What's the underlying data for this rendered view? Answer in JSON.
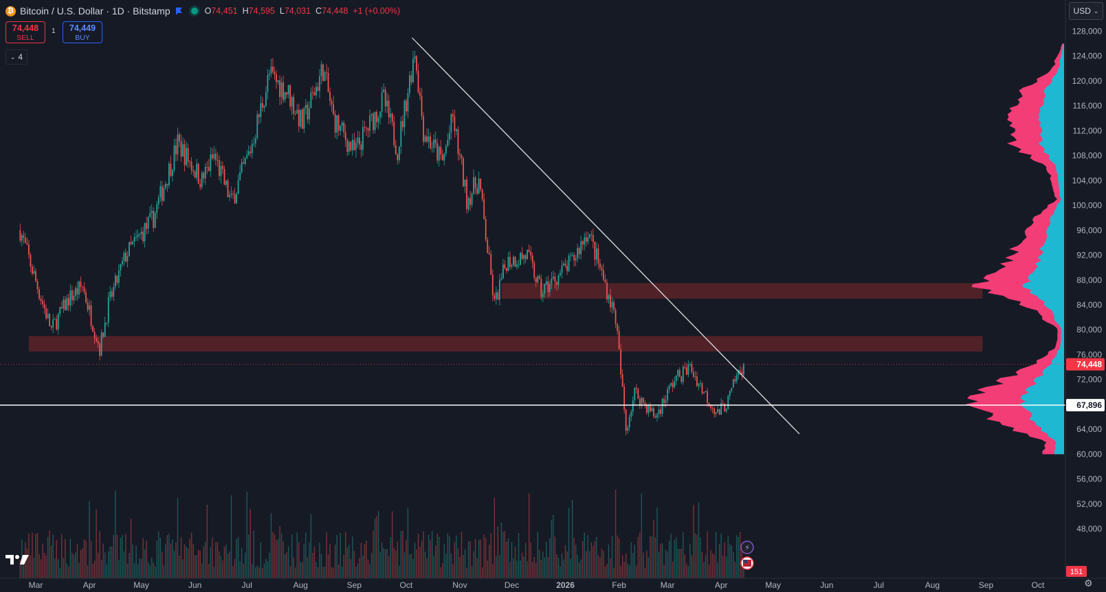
{
  "header": {
    "symbol_icon": "bitcoin-icon",
    "title": "Bitcoin / U.S. Dollar · 1D · Bitstamp",
    "ohlc": {
      "o_label": "O",
      "o": "74,451",
      "h_label": "H",
      "h": "74,595",
      "l_label": "L",
      "l": "74,031",
      "c_label": "C",
      "c": "74,448",
      "change": "+1 (+0.00%)"
    }
  },
  "trade": {
    "sell_price": "74,448",
    "sell_label": "SELL",
    "qty": "1",
    "buy_price": "74,449",
    "buy_label": "BUY"
  },
  "indicators_toggle": "4",
  "currency": "USD",
  "colors": {
    "up": "#26a69a",
    "down": "#ef5350",
    "profile_up": "#1fb8d3",
    "profile_down": "#f23d77",
    "zone": "#5c2329",
    "background": "#161a25"
  },
  "chart_data": {
    "type": "candlestick",
    "symbol": "Bitcoin / U.S. Dollar",
    "interval": "1D",
    "exchange": "Bitstamp",
    "x_ticks": [
      "Mar",
      "Apr",
      "May",
      "Jun",
      "Jul",
      "Aug",
      "Sep",
      "Oct",
      "Nov",
      "Dec",
      "2026",
      "Feb",
      "Mar",
      "Apr",
      "May",
      "Jun",
      "Jul",
      "Aug",
      "Sep",
      "Oct"
    ],
    "x_tick_dates": [
      "2025-03-01",
      "2025-04-01",
      "2025-05-01",
      "2025-06-01",
      "2025-07-01",
      "2025-08-01",
      "2025-09-01",
      "2025-10-01",
      "2025-11-01",
      "2025-12-01",
      "2026-01-01",
      "2026-02-01",
      "2026-03-01",
      "2026-04-01",
      "2026-05-01",
      "2026-06-01",
      "2026-07-01",
      "2026-08-01",
      "2026-09-01",
      "2026-10-01"
    ],
    "y_ticks": [
      48000,
      52000,
      56000,
      60000,
      64000,
      68000,
      72000,
      76000,
      80000,
      84000,
      88000,
      92000,
      96000,
      100000,
      104000,
      108000,
      112000,
      116000,
      120000,
      124000,
      128000
    ],
    "y_tick_labels": [
      "48,000",
      "52,000",
      "56,000",
      "60,000",
      "64,000",
      "68,000",
      "72,000",
      "76,000",
      "80,000",
      "84,000",
      "88,000",
      "92,000",
      "96,000",
      "100,000",
      "104,000",
      "108,000",
      "112,000",
      "116,000",
      "120,000",
      "124,000",
      "128,000"
    ],
    "ylim": [
      45000,
      132000
    ],
    "price_path": [
      [
        "2025-02-20",
        96000
      ],
      [
        "2025-03-03",
        86000
      ],
      [
        "2025-03-10",
        80000
      ],
      [
        "2025-03-20",
        85000
      ],
      [
        "2025-03-28",
        87000
      ],
      [
        "2025-04-07",
        77000
      ],
      [
        "2025-04-12",
        84000
      ],
      [
        "2025-04-22",
        92000
      ],
      [
        "2025-05-08",
        98000
      ],
      [
        "2025-05-22",
        110000
      ],
      [
        "2025-06-05",
        104000
      ],
      [
        "2025-06-12",
        108000
      ],
      [
        "2025-06-22",
        100500
      ],
      [
        "2025-07-03",
        109000
      ],
      [
        "2025-07-14",
        121000
      ],
      [
        "2025-07-25",
        118000
      ],
      [
        "2025-08-02",
        113000
      ],
      [
        "2025-08-14",
        122000
      ],
      [
        "2025-08-20",
        114000
      ],
      [
        "2025-09-01",
        108500
      ],
      [
        "2025-09-18",
        117000
      ],
      [
        "2025-09-26",
        109000
      ],
      [
        "2025-10-06",
        125000
      ],
      [
        "2025-10-11",
        112000
      ],
      [
        "2025-10-22",
        107000
      ],
      [
        "2025-10-28",
        114000
      ],
      [
        "2025-11-05",
        101000
      ],
      [
        "2025-11-12",
        104000
      ],
      [
        "2025-11-21",
        84000
      ],
      [
        "2025-11-28",
        91000
      ],
      [
        "2025-12-10",
        92000
      ],
      [
        "2025-12-18",
        86000
      ],
      [
        "2026-01-05",
        91000
      ],
      [
        "2026-01-14",
        96000
      ],
      [
        "2026-01-22",
        89000
      ],
      [
        "2026-01-30",
        82000
      ],
      [
        "2026-02-05",
        64000
      ],
      [
        "2026-02-10",
        70000
      ],
      [
        "2026-02-22",
        66000
      ],
      [
        "2026-03-05",
        72000
      ],
      [
        "2026-03-14",
        74000
      ],
      [
        "2026-03-22",
        70000
      ],
      [
        "2026-03-30",
        66500
      ],
      [
        "2026-04-05",
        68500
      ],
      [
        "2026-04-10",
        72500
      ],
      [
        "2026-04-14",
        74448
      ]
    ],
    "annotations": [
      {
        "type": "trendline_channel",
        "start": [
          "2025-10-06",
          126500
        ],
        "end": [
          "2026-05-15",
          63600
        ]
      },
      {
        "type": "zone",
        "y": [
          76500,
          79000
        ],
        "x": [
          "2025-02-25",
          "2026-08-30"
        ]
      },
      {
        "type": "zone",
        "y": [
          85000,
          87500
        ],
        "x": [
          "2025-11-25",
          "2026-08-30"
        ]
      },
      {
        "type": "hline",
        "y": 67896,
        "label": "67,896"
      },
      {
        "type": "current_price",
        "y": 74448,
        "label": "74,448"
      }
    ],
    "volume_profile": {
      "range": [
        60000,
        126000
      ],
      "nodes": [
        {
          "price": 62000,
          "size": 0.2
        },
        {
          "price": 65000,
          "size": 0.72
        },
        {
          "price": 68500,
          "size": 0.93
        },
        {
          "price": 71000,
          "size": 0.74
        },
        {
          "price": 74000,
          "size": 0.38
        },
        {
          "price": 77000,
          "size": 0.1
        },
        {
          "price": 80000,
          "size": 0.06
        },
        {
          "price": 84000,
          "size": 0.4
        },
        {
          "price": 87000,
          "size": 0.95
        },
        {
          "price": 90000,
          "size": 0.62
        },
        {
          "price": 94000,
          "size": 0.5
        },
        {
          "price": 98000,
          "size": 0.3
        },
        {
          "price": 101000,
          "size": 0.08
        },
        {
          "price": 106000,
          "size": 0.18
        },
        {
          "price": 110000,
          "size": 0.55
        },
        {
          "price": 113000,
          "size": 0.6
        },
        {
          "price": 118000,
          "size": 0.45
        },
        {
          "price": 122000,
          "size": 0.12
        },
        {
          "price": 126000,
          "size": 0.02
        }
      ]
    },
    "volume_label": "151"
  }
}
